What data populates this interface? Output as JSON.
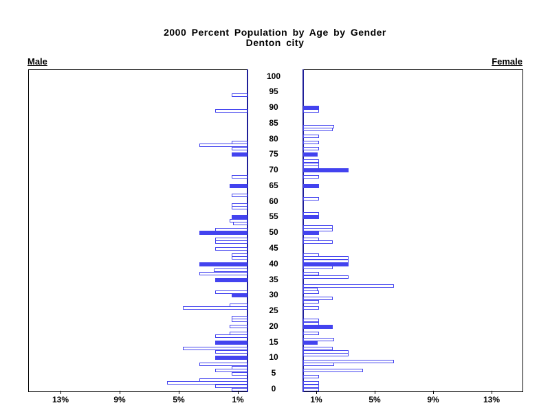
{
  "title": {
    "line1": "2000 Percent Population by Age by Gender",
    "line2": "Denton city"
  },
  "panel_labels": {
    "left": "Male",
    "right": "Female"
  },
  "axis": {
    "age_labels": [
      "0",
      "5",
      "10",
      "15",
      "20",
      "25",
      "30",
      "35",
      "40",
      "45",
      "50",
      "55",
      "60",
      "65",
      "70",
      "75",
      "80",
      "85",
      "90",
      "95",
      "100"
    ],
    "male_pct_ticks": [
      {
        "label": "13%",
        "value": 13
      },
      {
        "label": "9%",
        "value": 9
      },
      {
        "label": "5%",
        "value": 5
      },
      {
        "label": "1%",
        "value": 1
      }
    ],
    "female_pct_ticks": [
      {
        "label": "1%",
        "value": 1
      },
      {
        "label": "5%",
        "value": 5
      },
      {
        "label": "9%",
        "value": 9
      },
      {
        "label": "13%",
        "value": 13
      }
    ]
  },
  "colors": {
    "bar_blue": "#4343ef",
    "zero_axis_navy": "#1f1f99",
    "frame_black": "#000000"
  },
  "chart_data": {
    "type": "bar",
    "variant": "population-pyramid",
    "title": "2000 Percent Population by Age by Gender",
    "subtitle": "Denton city",
    "unit": "percent of population, single year of age",
    "age_axis": {
      "min": 0,
      "max": 100,
      "label_step": 5
    },
    "pct_axis": {
      "ticks_percent": [
        1,
        5,
        9,
        13
      ],
      "max_percent": 15
    },
    "legend": "solid bars are filled blue, other ages are hollow blue outlines",
    "series": [
      {
        "name": "Male",
        "side": "left",
        "points": [
          {
            "age": 94,
            "pct": 1.1,
            "solid": false
          },
          {
            "age": 89,
            "pct": 2.2,
            "solid": false
          },
          {
            "age": 79,
            "pct": 1.1,
            "solid": false
          },
          {
            "age": 78,
            "pct": 3.3,
            "solid": false
          },
          {
            "age": 77,
            "pct": 1.1,
            "solid": false
          },
          {
            "age": 75,
            "pct": 1.1,
            "solid": true
          },
          {
            "age": 68,
            "pct": 1.1,
            "solid": false
          },
          {
            "age": 65,
            "pct": 1.2,
            "solid": true
          },
          {
            "age": 62,
            "pct": 1.1,
            "solid": false
          },
          {
            "age": 59,
            "pct": 1.1,
            "solid": false
          },
          {
            "age": 58,
            "pct": 1.1,
            "solid": false
          },
          {
            "age": 55,
            "pct": 1.1,
            "solid": true
          },
          {
            "age": 54,
            "pct": 1.2,
            "solid": false
          },
          {
            "age": 53,
            "pct": 1.0,
            "solid": false
          },
          {
            "age": 51,
            "pct": 2.2,
            "solid": false
          },
          {
            "age": 50,
            "pct": 3.3,
            "solid": true
          },
          {
            "age": 48,
            "pct": 2.2,
            "solid": false
          },
          {
            "age": 47,
            "pct": 2.2,
            "solid": false
          },
          {
            "age": 45,
            "pct": 2.2,
            "solid": false
          },
          {
            "age": 43,
            "pct": 1.1,
            "solid": false
          },
          {
            "age": 42,
            "pct": 1.1,
            "solid": false
          },
          {
            "age": 40,
            "pct": 3.3,
            "solid": true
          },
          {
            "age": 38,
            "pct": 2.3,
            "solid": false
          },
          {
            "age": 37,
            "pct": 3.3,
            "solid": false
          },
          {
            "age": 35,
            "pct": 2.2,
            "solid": true
          },
          {
            "age": 31,
            "pct": 2.2,
            "solid": false
          },
          {
            "age": 30,
            "pct": 1.1,
            "solid": true
          },
          {
            "age": 27,
            "pct": 1.2,
            "solid": false
          },
          {
            "age": 26,
            "pct": 4.4,
            "solid": false
          },
          {
            "age": 23,
            "pct": 1.1,
            "solid": false
          },
          {
            "age": 22,
            "pct": 1.1,
            "solid": false
          },
          {
            "age": 20,
            "pct": 1.2,
            "solid": false
          },
          {
            "age": 18,
            "pct": 1.2,
            "solid": false
          },
          {
            "age": 17,
            "pct": 2.2,
            "solid": false
          },
          {
            "age": 15,
            "pct": 2.2,
            "solid": true
          },
          {
            "age": 13,
            "pct": 4.4,
            "solid": false
          },
          {
            "age": 12,
            "pct": 2.2,
            "solid": false
          },
          {
            "age": 10,
            "pct": 2.2,
            "solid": true
          },
          {
            "age": 8,
            "pct": 3.3,
            "solid": false
          },
          {
            "age": 7,
            "pct": 1.1,
            "solid": false
          },
          {
            "age": 6,
            "pct": 2.2,
            "solid": false
          },
          {
            "age": 5,
            "pct": 1.1,
            "solid": false
          },
          {
            "age": 3,
            "pct": 3.3,
            "solid": false
          },
          {
            "age": 2,
            "pct": 5.5,
            "solid": false
          },
          {
            "age": 1,
            "pct": 2.2,
            "solid": false
          },
          {
            "age": 0,
            "pct": 1.1,
            "solid": false
          }
        ]
      },
      {
        "name": "Female",
        "side": "right",
        "points": [
          {
            "age": 90,
            "pct": 1.1,
            "solid": true
          },
          {
            "age": 89,
            "pct": 1.1,
            "solid": false
          },
          {
            "age": 84,
            "pct": 2.1,
            "solid": false
          },
          {
            "age": 83,
            "pct": 2.0,
            "solid": false
          },
          {
            "age": 81,
            "pct": 1.1,
            "solid": false
          },
          {
            "age": 79,
            "pct": 1.1,
            "solid": false
          },
          {
            "age": 77,
            "pct": 1.1,
            "solid": false
          },
          {
            "age": 75,
            "pct": 1.0,
            "solid": true
          },
          {
            "age": 73,
            "pct": 1.1,
            "solid": false
          },
          {
            "age": 72,
            "pct": 1.1,
            "solid": false
          },
          {
            "age": 71,
            "pct": 1.1,
            "solid": false
          },
          {
            "age": 70,
            "pct": 3.1,
            "solid": true
          },
          {
            "age": 68,
            "pct": 1.1,
            "solid": false
          },
          {
            "age": 65,
            "pct": 1.1,
            "solid": true
          },
          {
            "age": 61,
            "pct": 1.1,
            "solid": false
          },
          {
            "age": 56,
            "pct": 1.1,
            "solid": false
          },
          {
            "age": 55,
            "pct": 1.1,
            "solid": true
          },
          {
            "age": 52,
            "pct": 2.0,
            "solid": false
          },
          {
            "age": 51,
            "pct": 2.0,
            "solid": false
          },
          {
            "age": 50,
            "pct": 1.1,
            "solid": true
          },
          {
            "age": 48,
            "pct": 1.1,
            "solid": false
          },
          {
            "age": 47,
            "pct": 2.0,
            "solid": false
          },
          {
            "age": 43,
            "pct": 1.1,
            "solid": false
          },
          {
            "age": 42,
            "pct": 3.1,
            "solid": false
          },
          {
            "age": 41,
            "pct": 3.1,
            "solid": false
          },
          {
            "age": 40,
            "pct": 3.1,
            "solid": true
          },
          {
            "age": 39,
            "pct": 2.0,
            "solid": false
          },
          {
            "age": 37,
            "pct": 1.1,
            "solid": false
          },
          {
            "age": 36,
            "pct": 3.1,
            "solid": false
          },
          {
            "age": 33,
            "pct": 6.2,
            "solid": false
          },
          {
            "age": 32,
            "pct": 1.0,
            "solid": false
          },
          {
            "age": 31,
            "pct": 1.1,
            "solid": false
          },
          {
            "age": 29,
            "pct": 2.0,
            "solid": false
          },
          {
            "age": 28,
            "pct": 1.1,
            "solid": false
          },
          {
            "age": 26,
            "pct": 1.1,
            "solid": false
          },
          {
            "age": 22,
            "pct": 1.1,
            "solid": false
          },
          {
            "age": 21,
            "pct": 1.1,
            "solid": false
          },
          {
            "age": 20,
            "pct": 2.0,
            "solid": true
          },
          {
            "age": 18,
            "pct": 1.1,
            "solid": false
          },
          {
            "age": 16,
            "pct": 2.1,
            "solid": false
          },
          {
            "age": 15,
            "pct": 1.0,
            "solid": true
          },
          {
            "age": 13,
            "pct": 2.0,
            "solid": false
          },
          {
            "age": 12,
            "pct": 3.1,
            "solid": false
          },
          {
            "age": 11,
            "pct": 3.1,
            "solid": false
          },
          {
            "age": 9,
            "pct": 6.2,
            "solid": false
          },
          {
            "age": 8,
            "pct": 2.1,
            "solid": false
          },
          {
            "age": 6,
            "pct": 4.1,
            "solid": false
          },
          {
            "age": 4,
            "pct": 1.1,
            "solid": false
          },
          {
            "age": 2,
            "pct": 1.1,
            "solid": false
          },
          {
            "age": 1,
            "pct": 1.1,
            "solid": false
          },
          {
            "age": 0,
            "pct": 1.1,
            "solid": false
          }
        ]
      }
    ]
  }
}
